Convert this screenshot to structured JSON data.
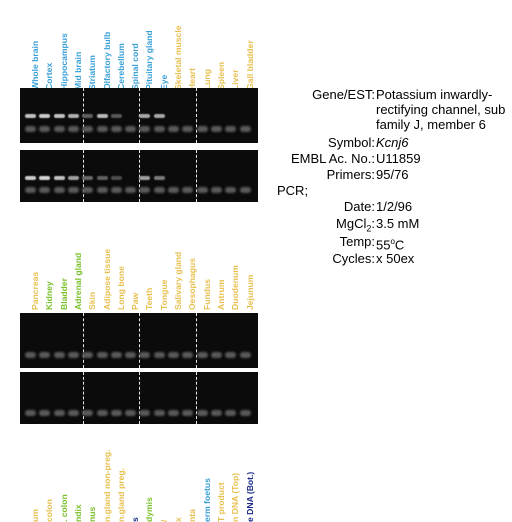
{
  "colors": {
    "cns": "#3aa0d8",
    "peripheral": "#e8c050",
    "green": "#7ac02a",
    "navy": "#1a2a8a",
    "gel_background": "#0b0b0b",
    "band": "#d8d8d8"
  },
  "panel1": {
    "lanes": [
      {
        "label": "Whole brain",
        "color": "#3aa0d8"
      },
      {
        "label": "Cortex",
        "color": "#3aa0d8"
      },
      {
        "label": "Hippocampus",
        "color": "#3aa0d8"
      },
      {
        "label": "Mid brain",
        "color": "#3aa0d8"
      },
      {
        "label": "Striatum",
        "color": "#3aa0d8"
      },
      {
        "label": "Olfactory bulb",
        "color": "#3aa0d8"
      },
      {
        "label": "Cerebellum",
        "color": "#3aa0d8"
      },
      {
        "label": "Spinal cord",
        "color": "#3aa0d8"
      },
      {
        "label": "Pituitary gland",
        "color": "#3aa0d8"
      },
      {
        "label": "Eye",
        "color": "#3aa0d8"
      },
      {
        "label": "Skeletal muscle",
        "color": "#e8c050"
      },
      {
        "label": "Heart",
        "color": "#e8c050"
      },
      {
        "label": "Lung",
        "color": "#e8c050"
      },
      {
        "label": "Spleen",
        "color": "#e8c050"
      },
      {
        "label": "Liver",
        "color": "#e8c050"
      },
      {
        "label": "Gall bladder",
        "color": "#e8c050"
      }
    ],
    "gel_top_bands": [
      0.75,
      0.8,
      0.75,
      0.65,
      0.2,
      0.7,
      0.15,
      0,
      0.6,
      0.6,
      0,
      0,
      0,
      0,
      0,
      0
    ],
    "gel_bottom_bands": [
      0.8,
      0.85,
      0.75,
      0.55,
      0.25,
      0.2,
      0.1,
      0,
      0.55,
      0.35,
      0,
      0,
      0,
      0,
      0,
      0
    ]
  },
  "panel2": {
    "lanes": [
      {
        "label": "Pancreas",
        "color": "#e8c050"
      },
      {
        "label": "Kidney",
        "color": "#7ac02a"
      },
      {
        "label": "Bladder",
        "color": "#7ac02a"
      },
      {
        "label": "Adrenal gland",
        "color": "#7ac02a"
      },
      {
        "label": "Skin",
        "color": "#e8c050"
      },
      {
        "label": "Adipose tissue",
        "color": "#e8c050"
      },
      {
        "label": "Long bone",
        "color": "#e8c050"
      },
      {
        "label": "Paw",
        "color": "#e8c050"
      },
      {
        "label": "Teeth",
        "color": "#e8c050"
      },
      {
        "label": "Tongue",
        "color": "#e8c050"
      },
      {
        "label": "Salivary gland",
        "color": "#e8c050"
      },
      {
        "label": "Oesophagus",
        "color": "#e8c050"
      },
      {
        "label": "Fundus",
        "color": "#e8c050"
      },
      {
        "label": "Antrum",
        "color": "#e8c050"
      },
      {
        "label": "Duodenum",
        "color": "#e8c050"
      },
      {
        "label": "Jejunum",
        "color": "#e8c050"
      }
    ]
  },
  "panel3": {
    "lanes": [
      {
        "label": "um",
        "color": "#e8c050"
      },
      {
        "label": "colon",
        "color": "#e8c050"
      },
      {
        "label": ". colon",
        "color": "#7ac02a"
      },
      {
        "label": "ndix",
        "color": "#7ac02a"
      },
      {
        "label": "nus",
        "color": "#7ac02a"
      },
      {
        "label": "n.gland non-preg.",
        "color": "#e8c050"
      },
      {
        "label": "n.gland preg.",
        "color": "#e8c050"
      },
      {
        "label": "s",
        "color": "#1a2a8a"
      },
      {
        "label": "dymis",
        "color": "#7ac02a"
      },
      {
        "label": "/",
        "color": "#e8c050"
      },
      {
        "label": "x",
        "color": "#e8c050"
      },
      {
        "label": "nta",
        "color": "#e8c050"
      },
      {
        "label": "erm foetus",
        "color": "#3aa0d8"
      },
      {
        "label": "T product",
        "color": "#e8c050"
      },
      {
        "label": "n DNA (Top)",
        "color": "#e8c050"
      },
      {
        "label": "e DNA (Bot.)",
        "color": "#1a2a8a"
      }
    ]
  },
  "info": {
    "gene_key": "Gene/EST:",
    "gene_line1": "Potassium inwardly-",
    "gene_line2": "rectifying channel, sub",
    "gene_line3": "family J, member 6",
    "symbol_key": "Symbol:",
    "symbol_val": "Kcnj6",
    "embl_key": "EMBL Ac. No.:",
    "embl_val": "U11859",
    "primers_key": "Primers:",
    "primers_val": "95/76",
    "pcr_heading": "PCR;",
    "date_key": "Date:",
    "date_val": "1/2/96",
    "mg_key_main": "MgCl",
    "mg_key_sub": "2",
    "mg_key_colon": ":",
    "mg_val": "3.5 mM",
    "temp_key": "Temp:",
    "temp_val_num": "55",
    "temp_val_sup": "o",
    "temp_val_unit": "C",
    "cycles_key": "Cycles:",
    "cycles_val": "x 50ex"
  }
}
